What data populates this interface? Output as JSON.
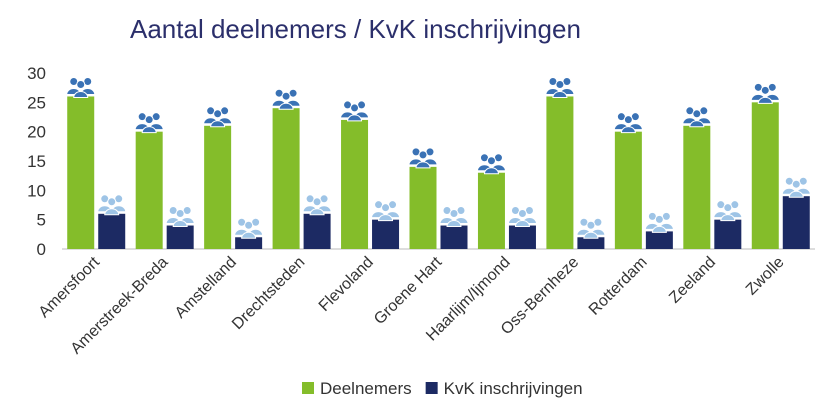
{
  "chart_data": {
    "type": "bar",
    "title": "Aantal deelnemers / KvK inschrijvingen",
    "categories": [
      "Amersfoort",
      "Amerstreek-Breda",
      "Amstelland",
      "Drechtsteden",
      "Flevoland",
      "Groene Hart",
      "Haarlijm/Ijmond",
      "Oss-Bernheze",
      "Rotterdam",
      "Zeeland",
      "Zwolle"
    ],
    "series": [
      {
        "name": "Deelnemers",
        "color": "#84bd2a",
        "icon_color": "#3a72b5",
        "values": [
          26,
          20,
          21,
          24,
          22,
          14,
          13,
          26,
          20,
          21,
          25
        ]
      },
      {
        "name": "KvK inschrijvingen",
        "color": "#1c2a63",
        "icon_color": "#9ec4e6",
        "values": [
          6,
          4,
          2,
          6,
          5,
          4,
          4,
          2,
          3,
          5,
          9
        ]
      }
    ],
    "ylim": [
      0,
      30
    ],
    "yticks": [
      0,
      5,
      10,
      15,
      20,
      25,
      30
    ],
    "grid": false,
    "legend": "bottom"
  }
}
